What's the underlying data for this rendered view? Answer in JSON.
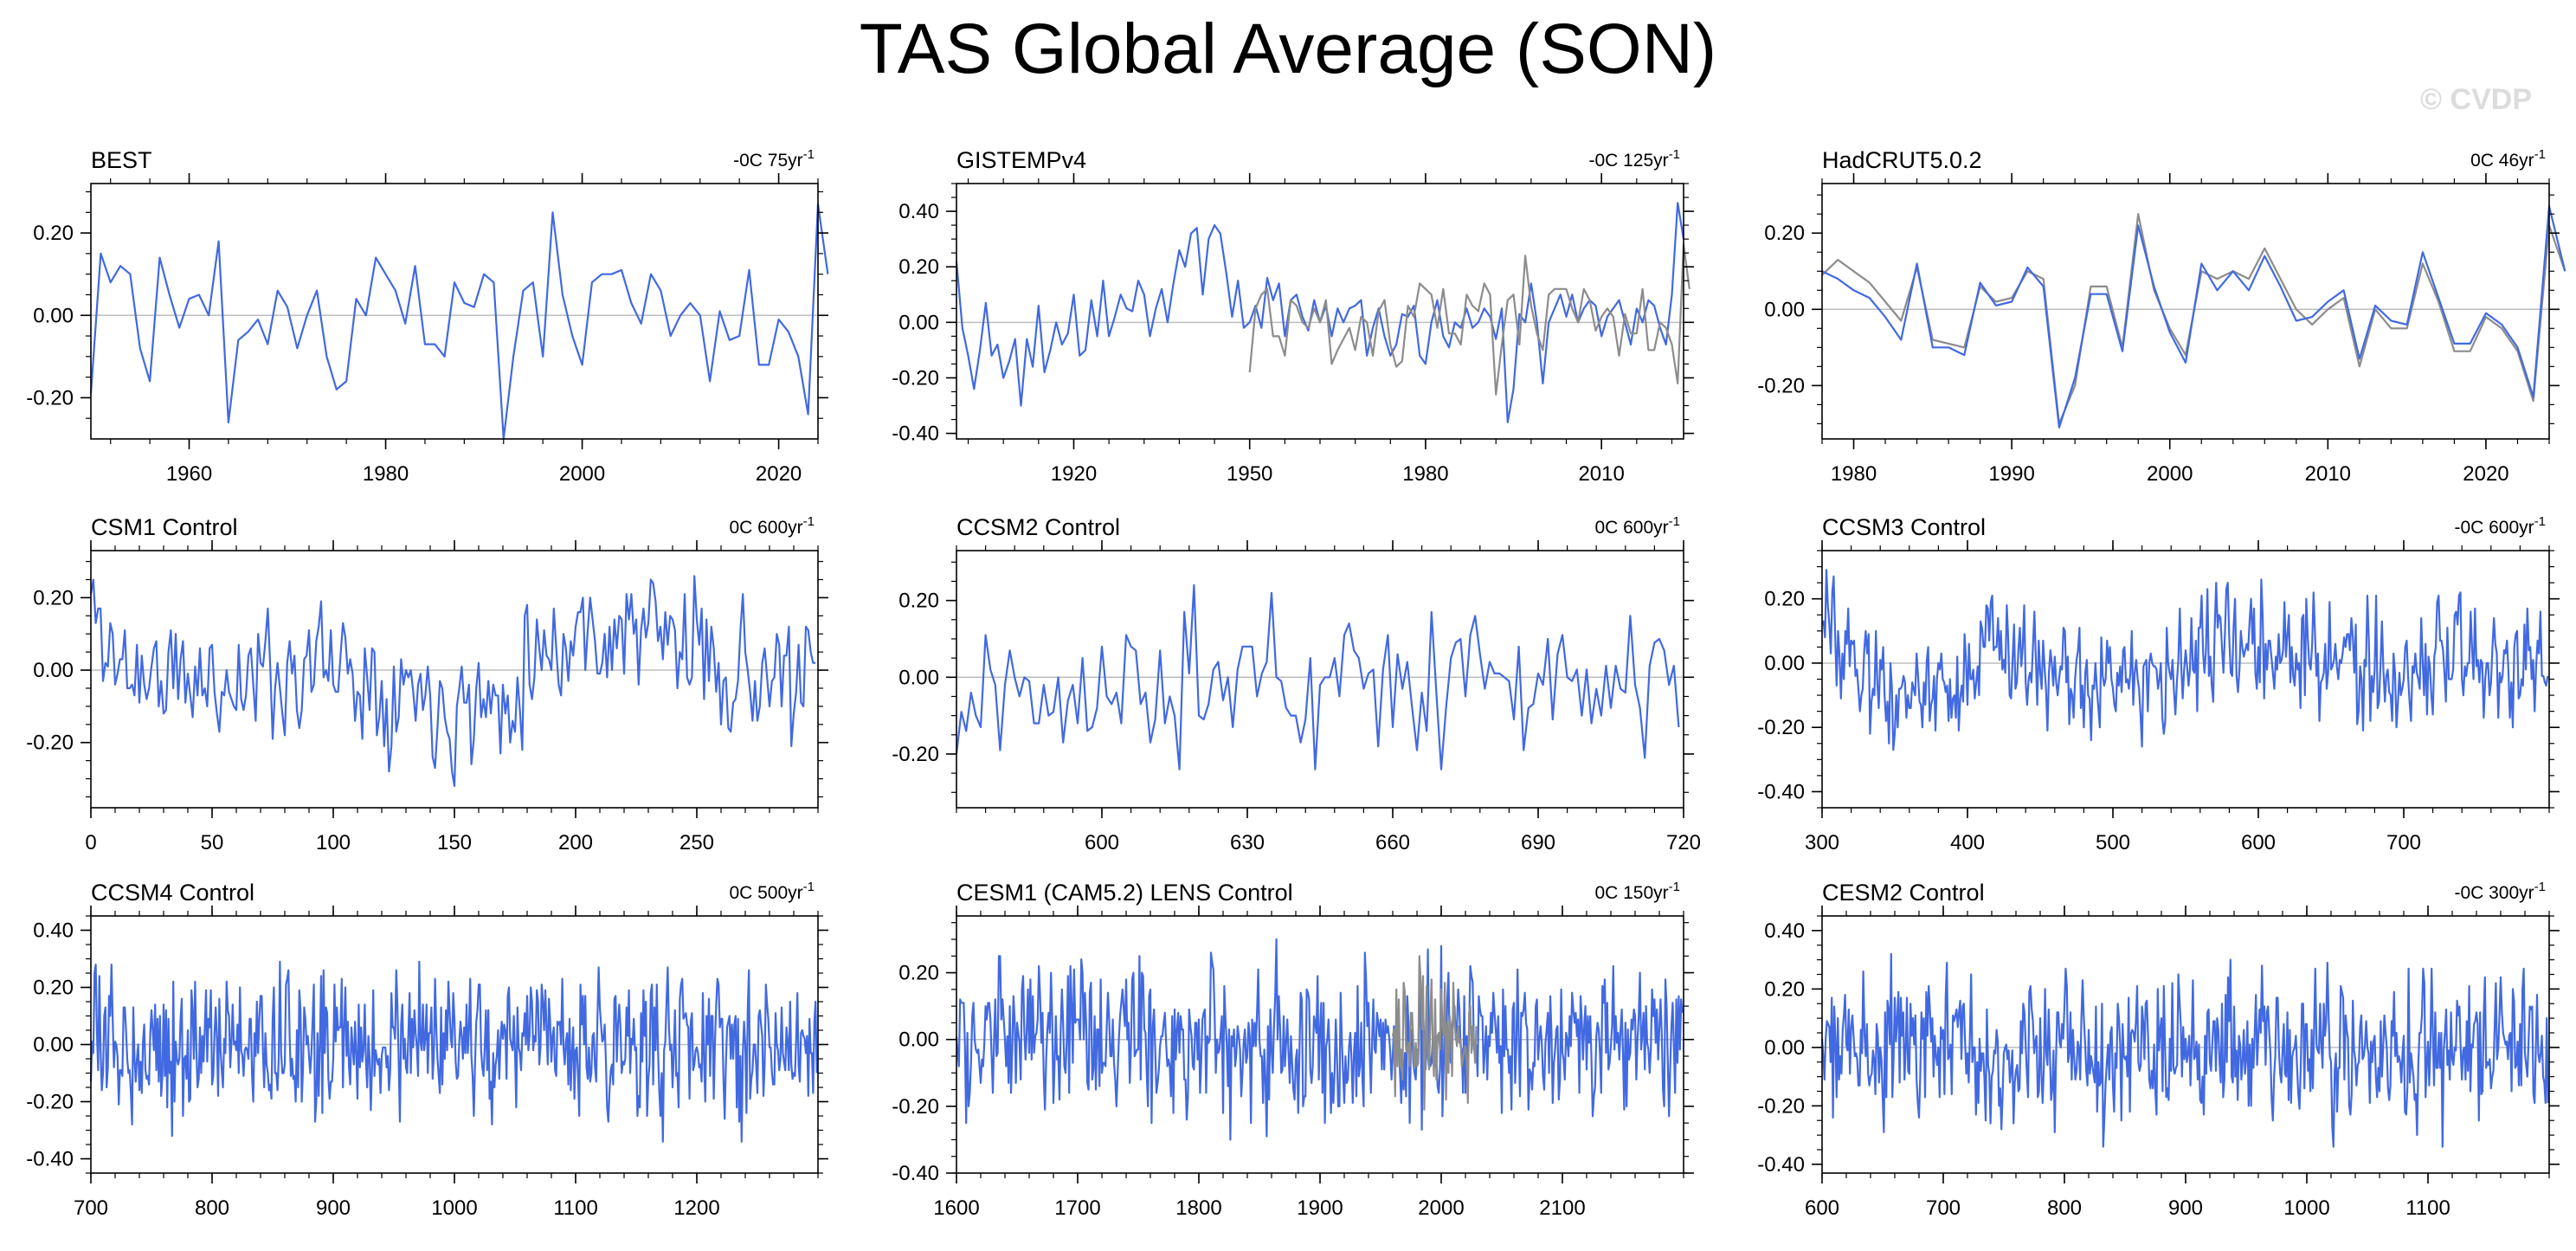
{
  "figure": {
    "title": "TAS Global Average (SON)",
    "watermark": "© CVDP",
    "colors": {
      "line": "#4169e1",
      "secondary": "#8c8c8c",
      "zero": "#bdbdbd",
      "axis": "#000000",
      "watermark": "#dcdcdc"
    }
  },
  "chart_data": [
    {
      "type": "line",
      "title": "BEST",
      "trend": "-0C 75yr",
      "trend_sup": "-1",
      "xlim": [
        1950,
        2024
      ],
      "ylim": [
        -0.3,
        0.32
      ],
      "yticks": [
        -0.2,
        0.0,
        0.2
      ],
      "ytick_labels": [
        "-0.20",
        "0.00",
        "0.20"
      ],
      "xticks": [
        1960,
        1980,
        2000,
        2020
      ],
      "series": [
        {
          "start": 1950,
          "step": 1,
          "values": [
            -0.19,
            0.15,
            0.08,
            0.12,
            0.1,
            -0.08,
            -0.16,
            0.14,
            0.05,
            -0.03,
            0.04,
            0.05,
            0.0,
            0.18,
            -0.26,
            -0.06,
            -0.04,
            -0.01,
            -0.07,
            0.06,
            0.02,
            -0.08,
            0.0,
            0.06,
            -0.1,
            -0.18,
            -0.16,
            0.04,
            0.0,
            0.14,
            0.1,
            0.06,
            -0.02,
            0.12,
            -0.07,
            -0.07,
            -0.1,
            0.08,
            0.03,
            0.02,
            0.1,
            0.08,
            -0.3,
            -0.1,
            0.06,
            0.08,
            -0.1,
            0.25,
            0.05,
            -0.05,
            -0.12,
            0.08,
            0.1,
            0.1,
            0.11,
            0.03,
            -0.02,
            0.1,
            0.06,
            -0.05,
            0.0,
            0.03,
            0.0,
            -0.16,
            0.01,
            -0.06,
            -0.05,
            0.11,
            -0.12,
            -0.12,
            -0.01,
            -0.04,
            -0.1,
            -0.24,
            0.27,
            0.1
          ]
        }
      ]
    },
    {
      "type": "line",
      "title": "GISTEMPv4",
      "trend": "-0C 125yr",
      "trend_sup": "-1",
      "xlim": [
        1900,
        2024
      ],
      "ylim": [
        -0.42,
        0.5
      ],
      "yticks": [
        -0.4,
        -0.2,
        0.0,
        0.2,
        0.4
      ],
      "ytick_labels": [
        "-0.40",
        "-0.20",
        "0.00",
        "0.20",
        "0.40"
      ],
      "xticks": [
        1920,
        1950,
        1980,
        2010
      ],
      "series": [
        {
          "start": 1900,
          "step": 1,
          "values": [
            0.22,
            -0.02,
            -0.12,
            -0.24,
            -0.1,
            0.07,
            -0.12,
            -0.08,
            -0.2,
            -0.14,
            -0.06,
            -0.3,
            -0.06,
            -0.16,
            0.06,
            -0.18,
            -0.1,
            0.0,
            -0.08,
            -0.04,
            0.1,
            -0.12,
            -0.1,
            0.08,
            -0.05,
            0.15,
            -0.05,
            0.02,
            0.1,
            0.05,
            0.04,
            0.15,
            0.1,
            -0.05,
            0.05,
            0.12,
            0.0,
            0.14,
            0.26,
            0.2,
            0.32,
            0.34,
            0.1,
            0.3,
            0.35,
            0.32,
            0.18,
            0.02,
            0.15,
            -0.02,
            0.0,
            0.06,
            -0.02,
            0.16,
            0.08,
            0.14,
            -0.05,
            0.08,
            0.1,
            0.02,
            -0.03,
            0.08,
            0.0,
            0.06,
            -0.05,
            0.05,
            0.0,
            0.05,
            0.06,
            0.08,
            -0.12,
            -0.02,
            0.05,
            -0.05,
            -0.12,
            -0.08,
            0.03,
            0.02,
            0.06,
            -0.12,
            -0.15,
            0.0,
            0.08,
            -0.05,
            -0.09,
            0.0,
            -0.02,
            0.05,
            -0.02,
            0.0,
            0.05,
            0.02,
            -0.06,
            0.05,
            -0.36,
            -0.24,
            0.03,
            0.0,
            0.14,
            0.0,
            -0.22,
            0.0,
            0.05,
            0.1,
            0.02,
            0.1,
            0.0,
            0.05,
            0.08,
            0.06,
            -0.05,
            0.02,
            0.05,
            0.08,
            0.0,
            -0.08,
            0.05,
            0.0,
            0.08,
            0.06,
            -0.02,
            -0.08,
            0.1,
            0.43,
            0.3
          ]
        },
        {
          "start": 1950,
          "step": 1,
          "colorKey": "secondary",
          "values": [
            -0.18,
            0.05,
            0.1,
            0.12,
            -0.05,
            -0.05,
            -0.12,
            0.08,
            0.06,
            0.0,
            -0.02,
            0.05,
            0.0,
            0.08,
            -0.15,
            -0.1,
            -0.06,
            -0.02,
            -0.1,
            0.02,
            0.0,
            -0.12,
            0.04,
            0.08,
            -0.08,
            -0.16,
            -0.14,
            0.06,
            0.02,
            0.14,
            0.12,
            0.1,
            -0.02,
            0.12,
            -0.04,
            -0.04,
            -0.08,
            0.1,
            0.06,
            0.04,
            0.14,
            0.1,
            -0.26,
            -0.08,
            0.08,
            0.1,
            -0.08,
            0.24,
            0.06,
            -0.04,
            -0.1,
            0.1,
            0.12,
            0.12,
            0.12,
            0.05,
            0.0,
            0.12,
            0.08,
            -0.03,
            0.02,
            0.05,
            0.02,
            -0.12,
            0.03,
            -0.04,
            -0.04,
            0.12,
            -0.1,
            -0.1,
            0.0,
            -0.02,
            -0.08,
            -0.22,
            0.28,
            0.12
          ]
        }
      ]
    },
    {
      "type": "line",
      "title": "HadCRUT5.0.2",
      "trend": "0C 46yr",
      "trend_sup": "-1",
      "xlim": [
        1978,
        2024
      ],
      "ylim": [
        -0.34,
        0.33
      ],
      "yticks": [
        -0.2,
        0.0,
        0.2
      ],
      "ytick_labels": [
        "-0.20",
        "0.00",
        "0.20"
      ],
      "xticks": [
        1980,
        1990,
        2000,
        2010,
        2020
      ],
      "series": [
        {
          "start": 1978,
          "step": 1,
          "colorKey": "secondary",
          "values": [
            0.09,
            0.13,
            0.1,
            0.07,
            0.02,
            -0.03,
            0.11,
            -0.08,
            -0.09,
            -0.1,
            0.06,
            0.02,
            0.03,
            0.1,
            0.08,
            -0.3,
            -0.2,
            0.06,
            0.06,
            -0.1,
            0.25,
            0.05,
            -0.05,
            -0.12,
            0.1,
            0.08,
            0.1,
            0.08,
            0.16,
            0.08,
            0.0,
            -0.04,
            0.0,
            0.03,
            -0.15,
            0.0,
            -0.05,
            -0.05,
            0.12,
            0.02,
            -0.11,
            -0.11,
            -0.02,
            -0.05,
            -0.11,
            -0.24,
            0.22,
            0.1
          ]
        },
        {
          "start": 1978,
          "step": 1,
          "values": [
            0.1,
            0.08,
            0.05,
            0.03,
            -0.02,
            -0.08,
            0.12,
            -0.1,
            -0.1,
            -0.12,
            0.07,
            0.01,
            0.02,
            0.11,
            0.06,
            -0.31,
            -0.18,
            0.04,
            0.04,
            -0.11,
            0.22,
            0.06,
            -0.06,
            -0.14,
            0.12,
            0.05,
            0.1,
            0.05,
            0.14,
            0.06,
            -0.03,
            -0.02,
            0.02,
            0.05,
            -0.13,
            0.01,
            -0.03,
            -0.04,
            0.15,
            0.03,
            -0.09,
            -0.09,
            -0.01,
            -0.04,
            -0.1,
            -0.23,
            0.27,
            0.1
          ]
        }
      ]
    },
    {
      "type": "line",
      "title": "CSM1 Control",
      "trend": "0C 600yr",
      "trend_sup": "-1",
      "xlim": [
        0,
        300
      ],
      "ylim": [
        -0.38,
        0.33
      ],
      "yticks": [
        -0.2,
        0.0,
        0.2
      ],
      "ytick_labels": [
        "-0.20",
        "0.00",
        "0.20"
      ],
      "xticks": [
        0,
        50,
        100,
        150,
        200,
        250
      ],
      "series": [
        {
          "start": 0,
          "step": 1,
          "synthetic": {
            "n": 300,
            "seed": 11,
            "amp": 0.085,
            "smooth": 0.3,
            "clip": 0.32,
            "lowfreq": [
              [
                0,
                0.18
              ],
              [
                10,
                0.02
              ],
              [
                40,
                -0.04
              ],
              [
                100,
                0.02
              ],
              [
                150,
                -0.08
              ],
              [
                170,
                -0.1
              ],
              [
                180,
                0.06
              ],
              [
                200,
                0.1
              ],
              [
                230,
                0.11
              ],
              [
                255,
                0.04
              ],
              [
                300,
                -0.08
              ]
            ]
          }
        }
      ]
    },
    {
      "type": "line",
      "title": "CCSM2 Control",
      "trend": "0C 600yr",
      "trend_sup": "-1",
      "xlim": [
        570,
        720
      ],
      "ylim": [
        -0.34,
        0.33
      ],
      "yticks": [
        -0.2,
        0.0,
        0.2
      ],
      "ytick_labels": [
        "-0.20",
        "0.00",
        "0.20"
      ],
      "xticks": [
        600,
        630,
        660,
        690,
        720
      ],
      "series": [
        {
          "start": 570,
          "step": 1,
          "synthetic": {
            "n": 150,
            "seed": 27,
            "amp": 0.095,
            "smooth": 0.2,
            "clip": 0.24
          }
        }
      ]
    },
    {
      "type": "line",
      "title": "CCSM3 Control",
      "trend": "-0C 600yr",
      "trend_sup": "-1",
      "xlim": [
        300,
        800
      ],
      "ylim": [
        -0.45,
        0.35
      ],
      "yticks": [
        -0.4,
        -0.2,
        0.0,
        0.2
      ],
      "ytick_labels": [
        "-0.40",
        "-0.20",
        "0.00",
        "0.20"
      ],
      "xticks": [
        300,
        400,
        500,
        600,
        700
      ],
      "series": [
        {
          "start": 300,
          "step": 1,
          "synthetic": {
            "n": 500,
            "seed": 39,
            "amp": 0.09,
            "smooth": 0.2,
            "clip": 0.37,
            "lowfreq": [
              [
                300,
                0.14
              ],
              [
                320,
                0.02
              ],
              [
                350,
                -0.12
              ],
              [
                400,
                -0.04
              ],
              [
                415,
                0.12
              ],
              [
                430,
                -0.02
              ],
              [
                480,
                -0.06
              ],
              [
                520,
                -0.08
              ],
              [
                560,
                0.04
              ],
              [
                600,
                0.06
              ],
              [
                650,
                0.0
              ],
              [
                700,
                -0.03
              ],
              [
                760,
                0.02
              ],
              [
                800,
                0.0
              ]
            ]
          }
        }
      ]
    },
    {
      "type": "line",
      "title": "CCSM4 Control",
      "trend": "0C 500yr",
      "trend_sup": "-1",
      "xlim": [
        700,
        1300
      ],
      "ylim": [
        -0.45,
        0.45
      ],
      "yticks": [
        -0.4,
        -0.2,
        0.0,
        0.2,
        0.4
      ],
      "ytick_labels": [
        "-0.40",
        "-0.20",
        "0.00",
        "0.20",
        "0.40"
      ],
      "xticks": [
        700,
        800,
        900,
        1000,
        1100,
        1200
      ],
      "series": [
        {
          "start": 700,
          "step": 1,
          "synthetic": {
            "n": 600,
            "seed": 53,
            "amp": 0.12,
            "smooth": 0.1,
            "clip": 0.39
          }
        }
      ]
    },
    {
      "type": "line",
      "title": "CESM1 (CAM5.2) LENS Control",
      "trend": "0C 150yr",
      "trend_sup": "-1",
      "xlim": [
        1600,
        2200
      ],
      "ylim": [
        -0.4,
        0.37
      ],
      "yticks": [
        -0.4,
        -0.2,
        0.0,
        0.2
      ],
      "ytick_labels": [
        "-0.40",
        "-0.20",
        "0.00",
        "0.20"
      ],
      "xticks": [
        1600,
        1700,
        1800,
        1900,
        2000,
        2100
      ],
      "series": [
        {
          "start": 1600,
          "step": 1,
          "synthetic": {
            "n": 600,
            "seed": 71,
            "amp": 0.11,
            "smooth": 0.12,
            "clip": 0.34
          }
        },
        {
          "start": 1960,
          "step": 1,
          "colorKey": "secondary",
          "synthetic": {
            "n": 70,
            "seed": 83,
            "amp": 0.11,
            "smooth": 0.1,
            "clip": 0.3
          }
        }
      ]
    },
    {
      "type": "line",
      "title": "CESM2 Control",
      "trend": "-0C 300yr",
      "trend_sup": "-1",
      "xlim": [
        600,
        1200
      ],
      "ylim": [
        -0.43,
        0.45
      ],
      "yticks": [
        -0.4,
        -0.2,
        0.0,
        0.2,
        0.4
      ],
      "ytick_labels": [
        "-0.40",
        "-0.20",
        "0.00",
        "0.20",
        "0.40"
      ],
      "xticks": [
        600,
        700,
        800,
        900,
        1000,
        1100
      ],
      "series": [
        {
          "start": 600,
          "step": 1,
          "synthetic": {
            "n": 600,
            "seed": 97,
            "amp": 0.12,
            "smooth": 0.12,
            "clip": 0.37
          }
        }
      ]
    }
  ]
}
